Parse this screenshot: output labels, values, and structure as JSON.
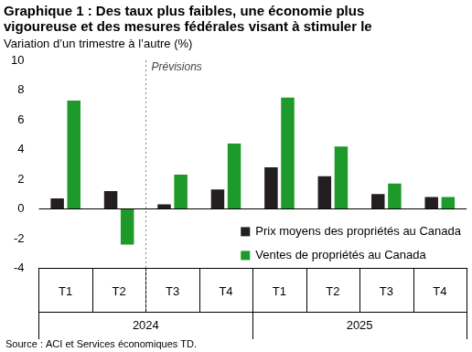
{
  "chart_data": {
    "type": "bar",
    "title": [
      "Graphique 1 : Des taux plus faibles, une économie plus",
      "vigoureuse et des mesures fédérales visant à stimuler le"
    ],
    "subtitle": "Variation d’un trimestre à l’autre (%)",
    "source": "Source : ACI et Services économiques TD.",
    "categories": [
      "T1",
      "T2",
      "T3",
      "T4",
      "T1",
      "T2",
      "T3",
      "T4"
    ],
    "category_groups": [
      "2024",
      "2024",
      "2024",
      "2024",
      "2025",
      "2025",
      "2025",
      "2025"
    ],
    "series": [
      {
        "name": "Prix moyens des propriétés au Canada",
        "color": "#231f20",
        "values": [
          0.7,
          1.2,
          0.3,
          1.3,
          2.8,
          2.2,
          1.0,
          0.8
        ]
      },
      {
        "name": "Ventes de propriétés au Canada",
        "color": "#1e9a2a",
        "values": [
          7.3,
          -2.4,
          2.3,
          4.4,
          7.5,
          4.2,
          1.7,
          0.8
        ]
      }
    ],
    "ylim": [
      -4,
      10
    ],
    "yticks": [
      -4,
      -2,
      0,
      2,
      4,
      6,
      8,
      10
    ],
    "grid": false,
    "legend": "lower right",
    "annotations": [
      {
        "text": "Prévisions",
        "category": "T3",
        "group": "2024"
      }
    ]
  }
}
